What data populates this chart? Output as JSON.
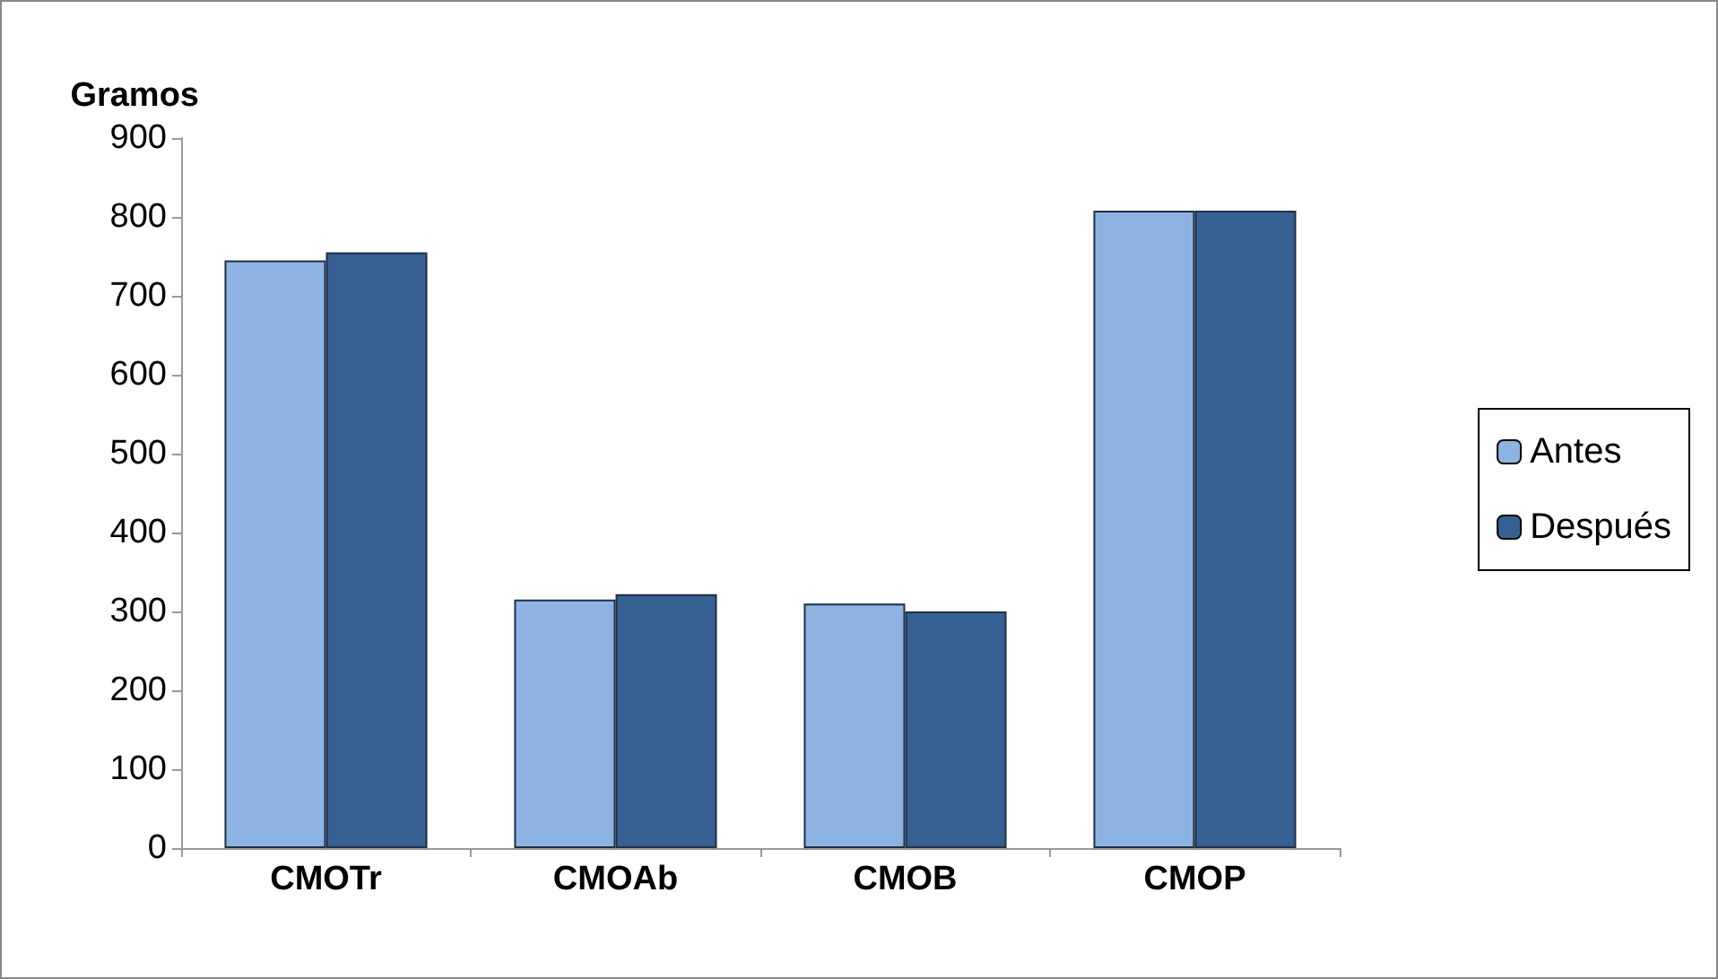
{
  "chart_data": {
    "type": "bar",
    "ylabel": "Gramos",
    "categories": [
      "CMOTr",
      "CMOAb",
      "CMOB",
      "CMOP"
    ],
    "series": [
      {
        "name": "Antes",
        "color": "#8db3e2",
        "values": [
          745,
          315,
          310,
          808
        ]
      },
      {
        "name": "Después",
        "color": "#366092",
        "values": [
          755,
          322,
          300,
          808
        ]
      }
    ],
    "ylim": [
      0,
      900
    ],
    "yticks": [
      0,
      100,
      200,
      300,
      400,
      500,
      600,
      700,
      800,
      900
    ],
    "grid": false,
    "legend": "right"
  }
}
